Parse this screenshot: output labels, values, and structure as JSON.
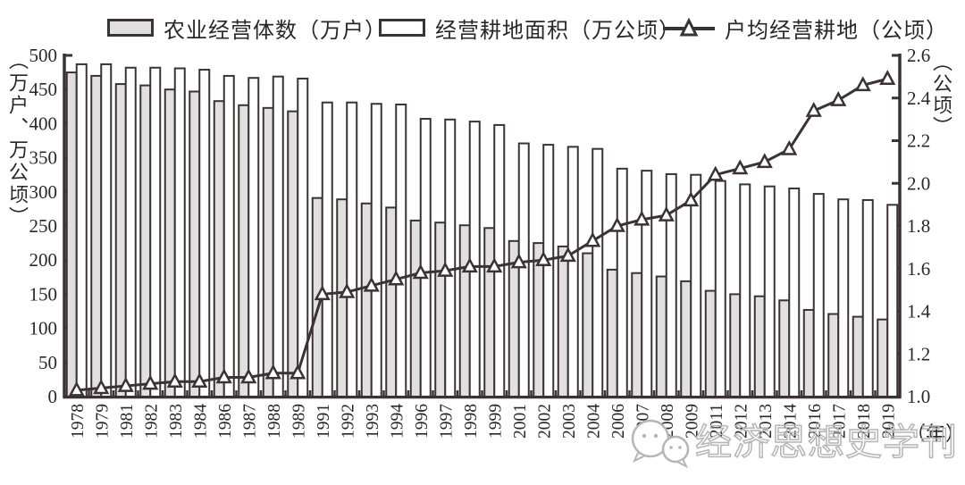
{
  "legend": [
    {
      "label": "农业经营体数（万户）",
      "swatch": "gray-bar"
    },
    {
      "label": "经营耕地面积（万公顷）",
      "swatch": "white-bar"
    },
    {
      "label": "户均经营耕地（公顷）",
      "swatch": "triangle-line"
    }
  ],
  "axes": {
    "left_title": "（万户、万公顷）",
    "right_title": "（公顷）",
    "x_title": "（年）"
  },
  "watermark": {
    "text": "经济思想史学刊",
    "icon": "chat-bubbles-icon"
  },
  "colors": {
    "stroke": "#3a3234",
    "gray_bar_fill": "#e1dfdf",
    "white_bar_fill": "#ffffff",
    "text": "#2b2728",
    "watermark": "#b5b5b5"
  },
  "chart_data": {
    "type": "bar",
    "subtype": "grouped-bars-with-line",
    "categories": [
      "1978",
      "1979",
      "1981",
      "1982",
      "1983",
      "1984",
      "1986",
      "1987",
      "1988",
      "1989",
      "1991",
      "1992",
      "1993",
      "1994",
      "1996",
      "1997",
      "1998",
      "1999",
      "2001",
      "2002",
      "2003",
      "2004",
      "2006",
      "2007",
      "2008",
      "2009",
      "2011",
      "2012",
      "2013",
      "2014",
      "2016",
      "2017",
      "2018",
      "2019"
    ],
    "series": [
      {
        "name": "农业经营体数（万户）",
        "type": "bar",
        "axis": "left",
        "color": "#e1dfdf",
        "values": [
          475,
          470,
          458,
          456,
          450,
          447,
          433,
          427,
          423,
          418,
          291,
          289,
          283,
          277,
          258,
          255,
          251,
          247,
          228,
          225,
          220,
          210,
          186,
          181,
          176,
          169,
          155,
          150,
          147,
          141,
          127,
          121,
          117,
          113
        ]
      },
      {
        "name": "经营耕地面积（万公顷）",
        "type": "bar",
        "axis": "left",
        "color": "#ffffff",
        "values": [
          487,
          487,
          482,
          482,
          481,
          479,
          470,
          467,
          469,
          466,
          431,
          431,
          429,
          428,
          407,
          406,
          403,
          398,
          371,
          369,
          366,
          363,
          334,
          331,
          326,
          325,
          316,
          311,
          308,
          305,
          297,
          289,
          288,
          281
        ]
      },
      {
        "name": "户均经营耕地（公顷）",
        "type": "line",
        "axis": "right",
        "marker": "open-triangle",
        "values": [
          1.03,
          1.04,
          1.05,
          1.06,
          1.07,
          1.07,
          1.09,
          1.09,
          1.11,
          1.11,
          1.48,
          1.49,
          1.52,
          1.55,
          1.58,
          1.59,
          1.61,
          1.61,
          1.63,
          1.64,
          1.66,
          1.73,
          1.8,
          1.83,
          1.85,
          1.92,
          2.04,
          2.07,
          2.1,
          2.16,
          2.34,
          2.39,
          2.46,
          2.49
        ]
      }
    ],
    "left_axis": {
      "title": "（万户、万公顷）",
      "min": 0,
      "max": 500,
      "step": 50
    },
    "right_axis": {
      "title": "（公顷）",
      "min": 1.0,
      "max": 2.6,
      "step": 0.2
    },
    "x_title": "（年）",
    "grid": false,
    "legend_position": "top"
  }
}
